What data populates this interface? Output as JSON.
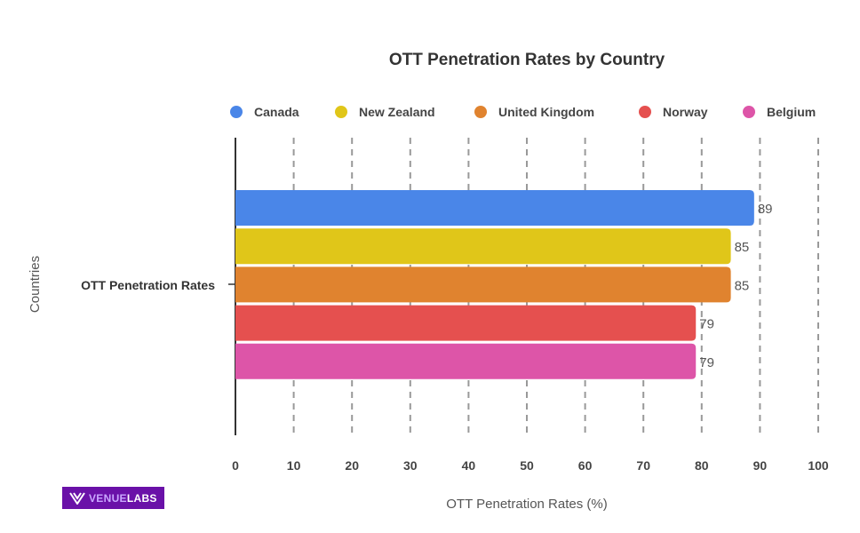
{
  "chart_data": {
    "type": "bar",
    "orientation": "horizontal",
    "title": "OTT Penetration Rates by Country",
    "xlabel": "OTT Penetration Rates (%)",
    "ylabel": "Countries",
    "categories": [
      "OTT Penetration Rates"
    ],
    "series": [
      {
        "name": "Canada",
        "values": [
          89
        ],
        "color": "#4a86e8"
      },
      {
        "name": "New Zealand",
        "values": [
          85
        ],
        "color": "#e0c619"
      },
      {
        "name": "United Kingdom",
        "values": [
          85
        ],
        "color": "#e0832f"
      },
      {
        "name": "Norway",
        "values": [
          79
        ],
        "color": "#e5504f"
      },
      {
        "name": "Belgium",
        "values": [
          79
        ],
        "color": "#dd55a8"
      }
    ],
    "xlim": [
      0,
      100
    ],
    "xticks": [
      "0",
      "10",
      "20",
      "30",
      "40",
      "50",
      "60",
      "70",
      "80",
      "90",
      "100"
    ],
    "grid": "vertical dashed",
    "legend": "top"
  },
  "logo": {
    "text_a": "VENUE",
    "text_b": "LABS"
  }
}
